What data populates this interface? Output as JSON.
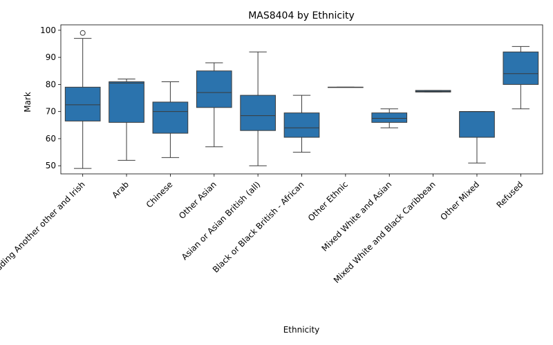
{
  "chart_data": {
    "type": "box",
    "title": "MAS8404 by Ethnicity",
    "xlabel": "Ethnicity",
    "ylabel": "Mark",
    "ylim": [
      47,
      102
    ],
    "yticks": [
      50,
      60,
      70,
      80,
      90,
      100
    ],
    "box_color": "#2b73ad",
    "line_color": "#3b3b3b",
    "categories": [
      "White including Another other and Irish",
      "Arab",
      "Chinese",
      "Other Asian",
      "Asian or Asian British (all)",
      "Black or Black British - African",
      "Other Ethnic",
      "Mixed White and Asian",
      "Mixed White and Black Caribbean",
      "Other Mixed",
      "Refused"
    ],
    "boxes": [
      {
        "whisker_low": 49,
        "q1": 66.5,
        "median": 72.5,
        "q3": 79,
        "whisker_high": 97,
        "outliers": [
          99
        ]
      },
      {
        "whisker_low": 52,
        "q1": 66,
        "median": 80.5,
        "q3": 81,
        "whisker_high": 82,
        "outliers": []
      },
      {
        "whisker_low": 53,
        "q1": 62,
        "median": 70,
        "q3": 73.5,
        "whisker_high": 81,
        "outliers": []
      },
      {
        "whisker_low": 57,
        "q1": 71.5,
        "median": 77,
        "q3": 85,
        "whisker_high": 88,
        "outliers": []
      },
      {
        "whisker_low": 50,
        "q1": 63,
        "median": 68.5,
        "q3": 76,
        "whisker_high": 92,
        "outliers": []
      },
      {
        "whisker_low": 55,
        "q1": 60.5,
        "median": 64,
        "q3": 69.5,
        "whisker_high": 76,
        "outliers": []
      },
      {
        "whisker_low": 79,
        "q1": 79,
        "median": 79,
        "q3": 79,
        "whisker_high": 79,
        "outliers": []
      },
      {
        "whisker_low": 64,
        "q1": 66,
        "median": 67.5,
        "q3": 69.5,
        "whisker_high": 71,
        "outliers": []
      },
      {
        "whisker_low": 77.2,
        "q1": 77.2,
        "median": 77.5,
        "q3": 77.8,
        "whisker_high": 77.8,
        "outliers": []
      },
      {
        "whisker_low": 51,
        "q1": 60.5,
        "median": 70,
        "q3": 70,
        "whisker_high": 70,
        "outliers": []
      },
      {
        "whisker_low": 71,
        "q1": 80,
        "median": 84,
        "q3": 92,
        "whisker_high": 94,
        "outliers": []
      }
    ]
  }
}
